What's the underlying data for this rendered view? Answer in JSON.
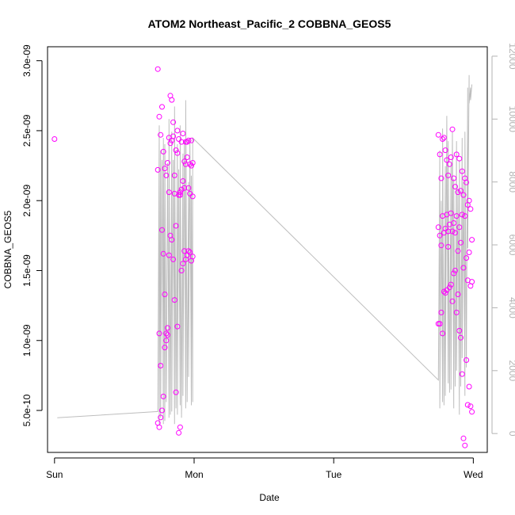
{
  "chart_data": {
    "type": "scatter",
    "title": "ATOM2 Northeast_Pacific_2 COBBNA_GEOS5",
    "xlabel": "Date",
    "ylabel": "COBBNA_GEOS5",
    "x_ticks": [
      "Sun",
      "Mon",
      "Tue",
      "Wed"
    ],
    "x_range_days": [
      -0.05,
      3.1
    ],
    "y_ticks": [
      "5.0e-10",
      "1.0e-09",
      "1.5e-09",
      "2.0e-09",
      "2.5e-09",
      "3.0e-09"
    ],
    "y_tick_values": [
      5e-10,
      1e-09,
      1.5e-09,
      2e-09,
      2.5e-09,
      3e-09
    ],
    "ylim": [
      2e-10,
      3.1e-09
    ],
    "y2_ticks": [
      "0",
      "2000",
      "4000",
      "6000",
      "8000",
      "10000",
      "12000"
    ],
    "y2_tick_values": [
      0,
      2000,
      4000,
      6000,
      8000,
      10000,
      12000
    ],
    "y2lim": [
      -600,
      12300
    ],
    "colors": {
      "points": "#ff00ff",
      "line": "#bebebe",
      "axis2": "#b3b3b3"
    },
    "series": [
      {
        "kind": "points",
        "x_days": [
          0.0,
          0.74,
          0.74,
          0.74,
          0.75,
          0.75,
          0.75,
          0.76,
          0.76,
          0.76,
          0.77,
          0.77,
          0.77,
          0.78,
          0.78,
          0.78,
          0.79,
          0.79,
          0.79,
          0.8,
          0.8,
          0.8,
          0.81,
          0.81,
          0.81,
          0.82,
          0.82,
          0.82,
          0.83,
          0.83,
          0.83,
          0.84,
          0.84,
          0.84,
          0.85,
          0.85,
          0.85,
          0.86,
          0.86,
          0.86,
          0.87,
          0.87,
          0.87,
          0.88,
          0.88,
          0.88,
          0.89,
          0.89,
          0.89,
          0.9,
          0.9,
          0.9,
          0.91,
          0.91,
          0.91,
          0.92,
          0.92,
          0.92,
          0.93,
          0.93,
          0.93,
          0.94,
          0.94,
          0.94,
          0.95,
          0.95,
          0.95,
          0.96,
          0.96,
          0.96,
          0.97,
          0.97,
          0.97,
          0.98,
          0.98,
          0.98,
          0.99,
          0.99,
          0.99,
          2.75,
          2.75,
          2.75,
          2.76,
          2.76,
          2.76,
          2.77,
          2.77,
          2.77,
          2.78,
          2.78,
          2.78,
          2.79,
          2.79,
          2.79,
          2.8,
          2.8,
          2.8,
          2.81,
          2.81,
          2.81,
          2.82,
          2.82,
          2.82,
          2.83,
          2.83,
          2.83,
          2.84,
          2.84,
          2.84,
          2.85,
          2.85,
          2.85,
          2.86,
          2.86,
          2.86,
          2.87,
          2.87,
          2.87,
          2.88,
          2.88,
          2.88,
          2.89,
          2.89,
          2.89,
          2.9,
          2.9,
          2.9,
          2.91,
          2.91,
          2.91,
          2.92,
          2.92,
          2.92,
          2.93,
          2.93,
          2.93,
          2.94,
          2.94,
          2.94,
          2.95,
          2.95,
          2.95,
          2.96,
          2.96,
          2.96,
          2.97,
          2.97,
          2.97,
          2.98,
          2.98,
          2.98,
          2.99,
          2.99,
          2.99
        ],
        "y": [
          2.44e-09,
          2.94e-09,
          2.22e-09,
          4.1e-10,
          2.6e-09,
          1.05e-09,
          3.8e-10,
          2.47e-09,
          8.2e-10,
          4.5e-10,
          2.67e-09,
          1.79e-09,
          5e-10,
          2.35e-09,
          1.62e-09,
          6e-10,
          2.23e-09,
          1.33e-09,
          9.5e-10,
          2.18e-09,
          1.05e-09,
          1e-09,
          2.27e-09,
          1.09e-09,
          1.04e-09,
          2.45e-09,
          2.06e-09,
          1.61e-09,
          2.75e-09,
          2.41e-09,
          1.75e-09,
          2.72e-09,
          2.43e-09,
          1.72e-09,
          2.56e-09,
          2.46e-09,
          1.58e-09,
          2.18e-09,
          2.05e-09,
          1.29e-09,
          2.36e-09,
          1.82e-09,
          6.3e-10,
          2.5e-09,
          2.34e-09,
          1.1e-09,
          2.44e-09,
          2.04e-09,
          3.4e-10,
          2.06e-09,
          2.04e-09,
          3.8e-10,
          2.42e-09,
          2.08e-09,
          1.5e-09,
          2.48e-09,
          2.14e-09,
          1.55e-09,
          2.28e-09,
          2.09e-09,
          1.64e-09,
          2.42e-09,
          2.26e-09,
          1.58e-09,
          2.42e-09,
          2.31e-09,
          1.61e-09,
          2.43e-09,
          2.09e-09,
          1.64e-09,
          2.26e-09,
          2.05e-09,
          1.63e-09,
          2.43e-09,
          2.25e-09,
          1.57e-09,
          2.27e-09,
          2.03e-09,
          1.6e-09,
          2.47e-09,
          1.81e-09,
          1.12e-09,
          2.33e-09,
          1.75e-09,
          1.12e-09,
          2.16e-09,
          1.68e-09,
          1.2e-09,
          2.44e-09,
          1.89e-09,
          1.05e-09,
          2.45e-09,
          1.77e-09,
          1.35e-09,
          2.36e-09,
          1.8e-09,
          1.34e-09,
          2.29e-09,
          1.9e-09,
          1.36e-09,
          2.18e-09,
          1.78e-09,
          1.67e-09,
          2.26e-09,
          1.83e-09,
          1.38e-09,
          2.31e-09,
          1.91e-09,
          1.4e-09,
          2.51e-09,
          1.78e-09,
          1.28e-09,
          2.16e-09,
          1.84e-09,
          1.48e-09,
          2.1e-09,
          1.77e-09,
          1.5e-09,
          2.33e-09,
          1.89e-09,
          1.2e-09,
          2.06e-09,
          1.64e-09,
          1.33e-09,
          2.3e-09,
          1.81e-09,
          1.07e-09,
          2.07e-09,
          1.7e-09,
          1.02e-09,
          2.21e-09,
          1.9e-09,
          7.6e-10,
          2.04e-09,
          1.52e-09,
          3e-10,
          2.16e-09,
          1.89e-09,
          2.5e-10,
          2.13e-09,
          1.59e-09,
          8.6e-10,
          1.97e-09,
          1.43e-09,
          5.4e-10,
          2e-09,
          1.63e-09,
          6.7e-10,
          1.94e-09,
          1.39e-09,
          5.3e-10,
          1.72e-09,
          1.42e-09,
          4.9e-10
        ]
      },
      {
        "kind": "line",
        "x_days": [
          0.02,
          0.74,
          0.75,
          0.75,
          0.76,
          0.76,
          0.77,
          0.78,
          0.78,
          0.79,
          0.79,
          0.8,
          0.81,
          0.82,
          0.82,
          0.83,
          0.84,
          0.84,
          0.85,
          0.86,
          0.86,
          0.87,
          0.88,
          0.88,
          0.89,
          0.9,
          0.9,
          0.91,
          0.92,
          0.92,
          0.93,
          0.94,
          0.94,
          0.95,
          0.96,
          0.96,
          0.97,
          0.98,
          0.98,
          0.99,
          0.99,
          2.75,
          2.76,
          2.76,
          2.77,
          2.78,
          2.78,
          2.79,
          2.8,
          2.8,
          2.81,
          2.82,
          2.82,
          2.83,
          2.84,
          2.84,
          2.85,
          2.86,
          2.86,
          2.87,
          2.88,
          2.88,
          2.89,
          2.9,
          2.9,
          2.91,
          2.92,
          2.92,
          2.93,
          2.94,
          2.94,
          2.95,
          2.96,
          2.96,
          2.97,
          2.97,
          2.98,
          2.98,
          2.99
        ],
        "y2": [
          500,
          700,
          9800,
          300,
          9000,
          500,
          8700,
          300,
          9400,
          400,
          9200,
          1000,
          8600,
          500,
          10000,
          600,
          9600,
          700,
          8700,
          300,
          10400,
          800,
          9200,
          600,
          8400,
          900,
          9800,
          500,
          8900,
          1200,
          9300,
          800,
          10600,
          1000,
          8000,
          1800,
          9400,
          900,
          8200,
          1000,
          9400,
          1700,
          9000,
          800,
          7400,
          1000,
          9700,
          900,
          8500,
          1200,
          10100,
          1600,
          9300,
          1300,
          8600,
          1400,
          9600,
          800,
          8100,
          1500,
          9300,
          2000,
          7800,
          600,
          8700,
          1500,
          9400,
          2400,
          8000,
          1200,
          9600,
          2100,
          11000,
          5900,
          11400,
          10500,
          11000,
          10600,
          11100
        ]
      }
    ]
  }
}
